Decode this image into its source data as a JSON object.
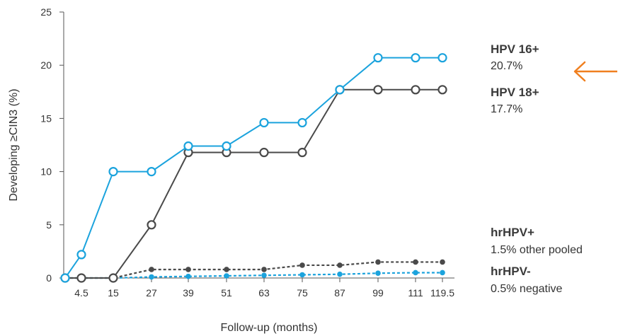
{
  "chart_data": {
    "type": "line",
    "title": "",
    "xlabel": "Follow-up (months)",
    "ylabel": "Developing ≥CIN3 (%)",
    "ylim": [
      0,
      25
    ],
    "yticks": [
      "0",
      "5",
      "10",
      "15",
      "20",
      "25"
    ],
    "x": [
      0,
      4.5,
      15,
      27,
      39,
      51,
      63,
      75,
      87,
      99,
      111,
      119.5
    ],
    "xticks": [
      "4.5",
      "15",
      "27",
      "39",
      "51",
      "63",
      "75",
      "87",
      "99",
      "111",
      "119.5"
    ],
    "grid": false,
    "series": [
      {
        "name": "HPV 16+",
        "color": "#1ba3dd",
        "style": "solid",
        "marker": "open-circle",
        "values": [
          0,
          2.2,
          10.0,
          10.0,
          12.4,
          12.4,
          14.6,
          14.6,
          17.7,
          20.7,
          20.7,
          20.7
        ]
      },
      {
        "name": "HPV 18+",
        "color": "#4a4a4a",
        "style": "solid",
        "marker": "open-circle",
        "values": [
          0,
          0,
          0,
          5.0,
          11.8,
          11.8,
          11.8,
          11.8,
          17.7,
          17.7,
          17.7,
          17.7
        ]
      },
      {
        "name": "hrHPV+",
        "color": "#4a4a4a",
        "style": "dotted",
        "marker": "filled-circle",
        "values": [
          0,
          0,
          0,
          0.8,
          0.8,
          0.8,
          0.8,
          1.2,
          1.2,
          1.5,
          1.5,
          1.5
        ]
      },
      {
        "name": "hrHPV-",
        "color": "#1ba3dd",
        "style": "dotted",
        "marker": "filled-circle",
        "values": [
          0,
          0,
          0,
          0.1,
          0.15,
          0.2,
          0.25,
          0.3,
          0.35,
          0.45,
          0.5,
          0.5
        ]
      }
    ],
    "legend": {
      "placement": "right",
      "entries": [
        {
          "name": "HPV 16+",
          "value": "20.7%"
        },
        {
          "name": "HPV 18+",
          "value": "17.7%"
        },
        {
          "name": "hrHPV+",
          "value": "1.5% other pooled"
        },
        {
          "name": "hrHPV-",
          "value": "0.5% negative"
        }
      ]
    },
    "annotation": {
      "icon": "arrow-left-icon",
      "color": "#f07f1f",
      "points_to": "HPV 16+"
    }
  }
}
